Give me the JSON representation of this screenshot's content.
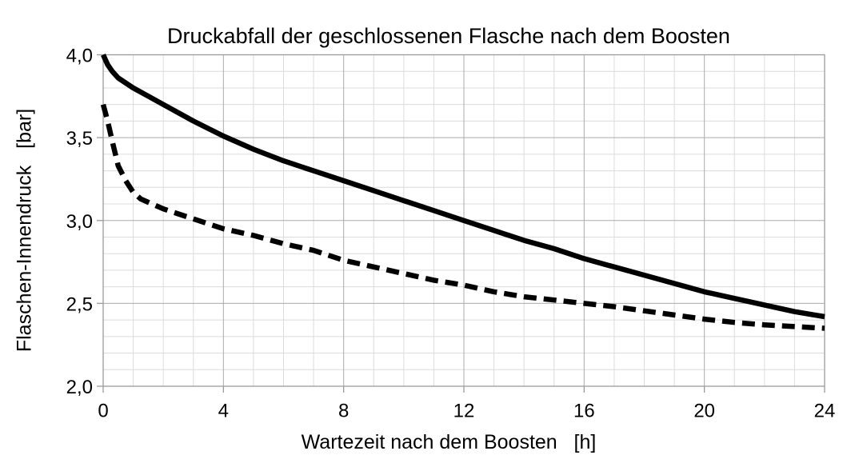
{
  "chart_data": {
    "type": "line",
    "title": "Druckabfall der geschlossenen Flasche nach dem Boosten",
    "xlabel": "Wartezeit nach dem Boosten   [h]",
    "ylabel": "Flaschen-Innendruck   [bar]",
    "xlim": [
      0,
      24
    ],
    "ylim": [
      2.0,
      4.0
    ],
    "x_major_ticks": [
      0,
      4,
      8,
      12,
      16,
      20,
      24
    ],
    "x_tick_labels": [
      "0",
      "4",
      "8",
      "12",
      "16",
      "20",
      "24"
    ],
    "x_minor_step": 1,
    "y_major_ticks": [
      2.0,
      2.5,
      3.0,
      3.5,
      4.0
    ],
    "y_tick_labels": [
      "2,0",
      "2,5",
      "3,0",
      "3,5",
      "4,0"
    ],
    "y_minor_step": 0.1,
    "grid": "minor and major, both axes",
    "legend_position": "none",
    "colors": {
      "curve": "#000000",
      "grid_minor": "#dcdcdc",
      "grid_major": "#ababab",
      "axis": "#9a9a9a",
      "text": "#000000"
    },
    "series": [
      {
        "name": "solid",
        "style": "solid",
        "x": [
          0,
          0.15,
          0.3,
          0.5,
          1,
          1.5,
          2,
          3,
          4,
          5,
          6,
          7,
          8,
          9,
          10,
          11,
          12,
          13,
          14,
          15,
          16,
          17,
          18,
          19,
          20,
          21,
          22,
          23,
          24
        ],
        "y": [
          4.0,
          3.94,
          3.9,
          3.86,
          3.8,
          3.75,
          3.7,
          3.6,
          3.51,
          3.43,
          3.36,
          3.3,
          3.24,
          3.18,
          3.12,
          3.06,
          3.0,
          2.94,
          2.88,
          2.83,
          2.77,
          2.72,
          2.67,
          2.62,
          2.57,
          2.53,
          2.49,
          2.45,
          2.42
        ]
      },
      {
        "name": "dashed",
        "style": "dashed",
        "x": [
          0,
          0.15,
          0.3,
          0.5,
          0.75,
          1,
          1.25,
          1.5,
          2,
          2.5,
          3,
          4,
          5,
          6,
          7,
          8,
          9,
          10,
          11,
          12,
          13,
          14,
          15,
          16,
          17,
          18,
          19,
          20,
          21,
          22,
          23,
          24
        ],
        "y": [
          3.7,
          3.6,
          3.48,
          3.33,
          3.24,
          3.17,
          3.13,
          3.11,
          3.07,
          3.04,
          3.01,
          2.95,
          2.91,
          2.86,
          2.82,
          2.76,
          2.72,
          2.68,
          2.64,
          2.61,
          2.57,
          2.54,
          2.52,
          2.5,
          2.48,
          2.455,
          2.43,
          2.405,
          2.385,
          2.37,
          2.36,
          2.35
        ]
      }
    ]
  }
}
